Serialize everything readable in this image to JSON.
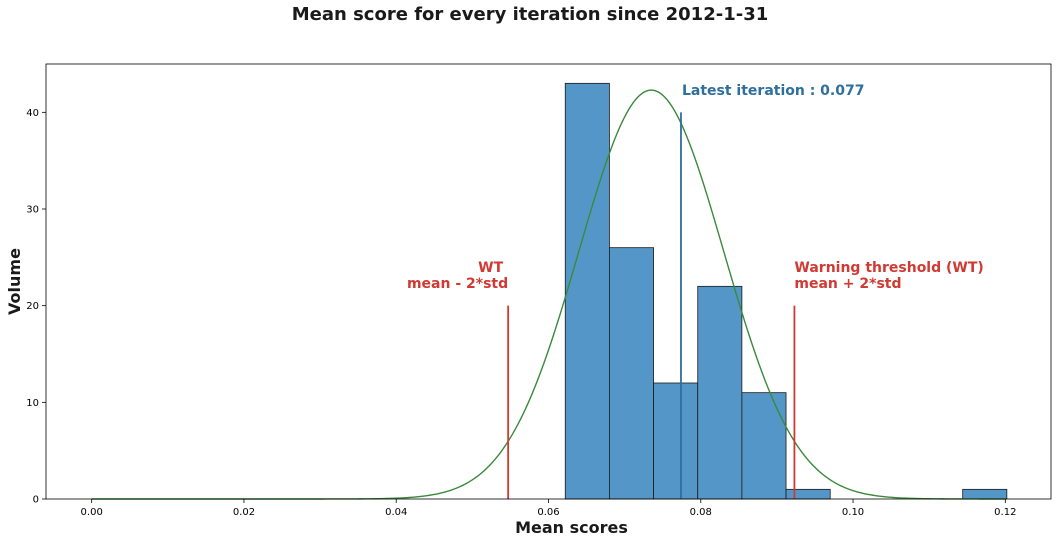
{
  "chart_data": {
    "type": "bar",
    "title": "Mean score for every iteration since 2012-1-31",
    "xlabel": "Mean scores",
    "ylabel": "Volume",
    "xlim": [
      -0.006,
      0.126
    ],
    "ylim": [
      0,
      45
    ],
    "xticks": [
      0.0,
      0.02,
      0.04,
      0.06,
      0.08,
      0.1,
      0.12
    ],
    "xtick_labels": [
      "0.00",
      "0.02",
      "0.04",
      "0.06",
      "0.08",
      "0.10",
      "0.12"
    ],
    "yticks": [
      0,
      10,
      20,
      30,
      40
    ],
    "ytick_labels": [
      "0",
      "10",
      "20",
      "30",
      "40"
    ],
    "grid": false,
    "histogram": {
      "bins": [
        {
          "x0": 0.0622,
          "x1": 0.068,
          "count": 43
        },
        {
          "x0": 0.068,
          "x1": 0.0738,
          "count": 26
        },
        {
          "x0": 0.0738,
          "x1": 0.0796,
          "count": 12
        },
        {
          "x0": 0.0796,
          "x1": 0.0854,
          "count": 22
        },
        {
          "x0": 0.0854,
          "x1": 0.0912,
          "count": 11
        },
        {
          "x0": 0.0912,
          "x1": 0.097,
          "count": 1
        },
        {
          "x0": 0.097,
          "x1": 0.1028,
          "count": 0
        },
        {
          "x0": 0.1028,
          "x1": 0.1086,
          "count": 0
        },
        {
          "x0": 0.1086,
          "x1": 0.1144,
          "count": 0
        },
        {
          "x0": 0.1144,
          "x1": 0.1202,
          "count": 1
        }
      ],
      "color": "#5596c8",
      "edgecolor": "#1a1a1a"
    },
    "normal_curve": {
      "mean": 0.0735,
      "std": 0.0095,
      "peak": 42.3,
      "x_range": [
        0.0,
        0.12
      ],
      "color": "#3a8a3a"
    },
    "latest_iteration": {
      "x": 0.0774,
      "height": 40,
      "label": "Latest iteration : 0.077",
      "color": "#2e6f9e"
    },
    "lower_threshold": {
      "x": 0.0547,
      "height": 20,
      "label_line1": "WT",
      "label_line2": "mean - 2*std",
      "color": "#d03a32"
    },
    "upper_threshold": {
      "x": 0.0923,
      "height": 20,
      "label_line1": "Warning threshold (WT)",
      "label_line2": " mean + 2*std",
      "color": "#d03a32"
    }
  }
}
